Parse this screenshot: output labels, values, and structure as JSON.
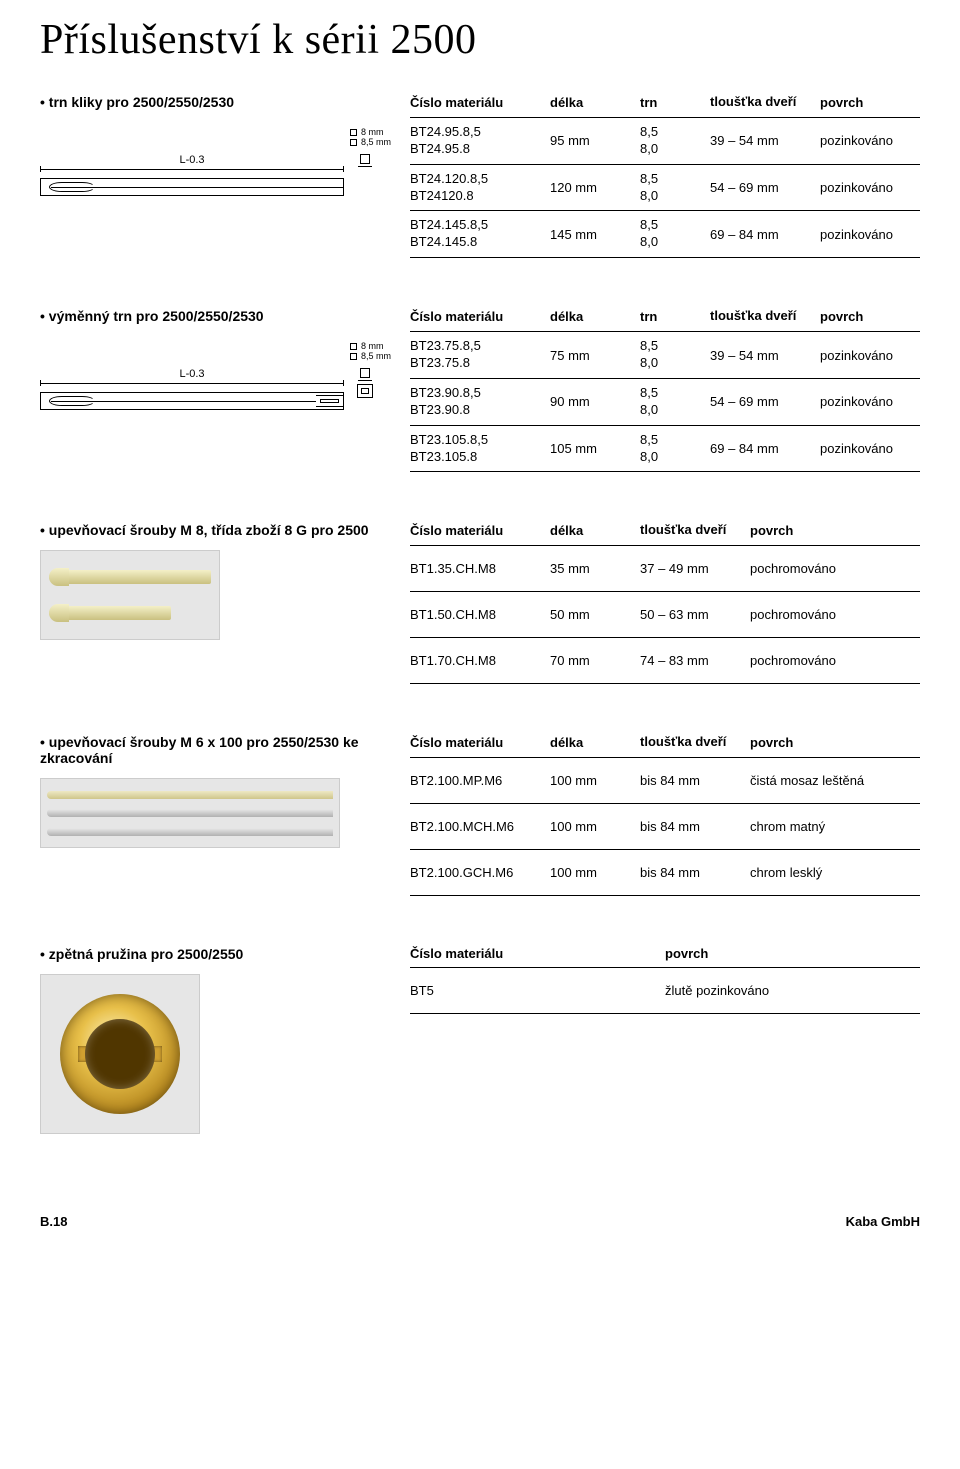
{
  "page_title": "Příslušenství k sérii 2500",
  "footer_left": "B.18",
  "footer_right": "Kaba GmbH",
  "diagram_label_L": "L-0.3",
  "diagram_sq1": "8 mm",
  "diagram_sq2": "8,5 mm",
  "s1": {
    "title": "trn kliky pro 2500/2550/2530",
    "head": {
      "mat": "Číslo materiálu",
      "len": "délka",
      "trn": "trn",
      "thick": "tloušťka dveří",
      "surf": "povrch"
    },
    "rows": [
      {
        "m1": "BT24.95.8,5",
        "m2": "BT24.95.8",
        "len": "95 mm",
        "t1": "8,5",
        "t2": "8,0",
        "th": "39 – 54 mm",
        "surf": "pozinkováno"
      },
      {
        "m1": "BT24.120.8,5",
        "m2": "BT24120.8",
        "len": "120 mm",
        "t1": "8,5",
        "t2": "8,0",
        "th": "54 – 69 mm",
        "surf": "pozinkováno"
      },
      {
        "m1": "BT24.145.8,5",
        "m2": "BT24.145.8",
        "len": "145 mm",
        "t1": "8,5",
        "t2": "8,0",
        "th": "69 – 84 mm",
        "surf": "pozinkováno"
      }
    ]
  },
  "s2": {
    "title": "výměnný trn pro 2500/2550/2530",
    "head": {
      "mat": "Číslo materiálu",
      "len": "délka",
      "trn": "trn",
      "thick": "tloušťka dveří",
      "surf": "povrch"
    },
    "rows": [
      {
        "m1": "BT23.75.8,5",
        "m2": "BT23.75.8",
        "len": "75 mm",
        "t1": "8,5",
        "t2": "8,0",
        "th": "39 – 54 mm",
        "surf": "pozinkováno"
      },
      {
        "m1": "BT23.90.8,5",
        "m2": "BT23.90.8",
        "len": "90 mm",
        "t1": "8,5",
        "t2": "8,0",
        "th": "54 – 69 mm",
        "surf": "pozinkováno"
      },
      {
        "m1": "BT23.105.8,5",
        "m2": "BT23.105.8",
        "len": "105 mm",
        "t1": "8,5",
        "t2": "8,0",
        "th": "69 – 84 mm",
        "surf": "pozinkováno"
      }
    ]
  },
  "s3": {
    "title": "upevňovací šrouby M 8, třída zboží 8 G pro 2500",
    "head": {
      "mat": "Číslo materiálu",
      "len": "délka",
      "thick": "tloušťka dveří",
      "surf": "povrch"
    },
    "rows": [
      {
        "m": "BT1.35.CH.M8",
        "len": "35 mm",
        "th": "37 – 49 mm",
        "surf": "pochromováno"
      },
      {
        "m": "BT1.50.CH.M8",
        "len": "50 mm",
        "th": "50 – 63 mm",
        "surf": "pochromováno"
      },
      {
        "m": "BT1.70.CH.M8",
        "len": "70 mm",
        "th": "74 – 83 mm",
        "surf": "pochromováno"
      }
    ]
  },
  "s4": {
    "title": "upevňovací šrouby  M 6 x 100 pro 2550/2530 ke zkracování",
    "head": {
      "mat": "Číslo materiálu",
      "len": "délka",
      "thick": "tloušťka dveří",
      "surf": "povrch"
    },
    "rows": [
      {
        "m": "BT2.100.MP.M6",
        "len": "100 mm",
        "th": "bis 84 mm",
        "surf": "čistá mosaz leštěná"
      },
      {
        "m": "BT2.100.MCH.M6",
        "len": "100 mm",
        "th": "bis 84 mm",
        "surf": "chrom matný"
      },
      {
        "m": "BT2.100.GCH.M6",
        "len": "100 mm",
        "th": "bis 84 mm",
        "surf": "chrom lesklý"
      }
    ]
  },
  "s5": {
    "title": "zpětná pružina  pro 2500/2550",
    "head": {
      "mat": "Číslo materiálu",
      "surf": "povrch"
    },
    "rows": [
      {
        "m": "BT5",
        "surf": "žlutě pozinkováno"
      }
    ]
  }
}
